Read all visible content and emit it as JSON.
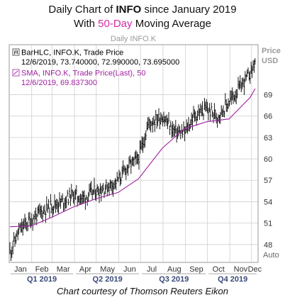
{
  "header": {
    "line1_prefix": "Daily Chart of ",
    "line1_ticker": "INFO",
    "line1_suffix": " since January 2019",
    "line2_prefix": "With ",
    "line2_accent": "50-Day",
    "line2_suffix": " Moving Average"
  },
  "caption": "Chart courtesy of Thomson Reuters Eikon",
  "colors": {
    "bars": "#000000",
    "sma": "#a020a0",
    "accent": "#d62aa6",
    "grid": "#cfcfcf",
    "quarter_text": "#3a4a7a"
  },
  "chart_data": {
    "type": "line",
    "panel_title": "Daily INFO.K",
    "axis_title_top": "Price",
    "axis_title_unit": "USD",
    "axis_title_bottom": "Auto",
    "ylim": [
      45.5,
      76
    ],
    "y_ticks": [
      "48",
      "51",
      "54",
      "57",
      "60",
      "63",
      "66",
      "69"
    ],
    "months": [
      "Jan",
      "Feb",
      "Mar",
      "Apr",
      "May",
      "Jun",
      "Jul",
      "Aug",
      "Sep",
      "Oct",
      "Nov",
      "Dec"
    ],
    "quarters": [
      "Q1 2019",
      "Q2 2019",
      "Q3 2019",
      "Q4 2019"
    ],
    "grid": true,
    "legend": {
      "bar_label": "BarHLC, INFO.K, Trade Price",
      "bar_values": "12/6/2019, 73.740000, 72.990000, 73.695000",
      "sma_label": "SMA, INFO.K, Trade Price(Last), 50",
      "sma_values": "12/6/2019, 69.837300"
    },
    "series": [
      {
        "name": "BarHLC, INFO.K, Trade Price",
        "style": "ohlc-bars",
        "x": [
          "2019-01-02",
          "2019-01-15",
          "2019-01-31",
          "2019-02-14",
          "2019-02-28",
          "2019-03-15",
          "2019-03-29",
          "2019-04-12",
          "2019-04-30",
          "2019-05-15",
          "2019-05-31",
          "2019-06-14",
          "2019-06-28",
          "2019-07-12",
          "2019-07-31",
          "2019-08-15",
          "2019-08-30",
          "2019-09-13",
          "2019-09-30",
          "2019-10-15",
          "2019-10-31",
          "2019-11-15",
          "2019-11-29",
          "2019-12-06"
        ],
        "close": [
          47.0,
          50.0,
          51.5,
          52.5,
          53.5,
          54.0,
          55.0,
          54.5,
          55.5,
          56.0,
          57.0,
          59.0,
          60.0,
          65.0,
          66.0,
          64.0,
          63.5,
          66.0,
          67.0,
          66.0,
          68.0,
          70.0,
          72.0,
          73.695
        ]
      },
      {
        "name": "SMA, INFO.K, Trade Price(Last), 50",
        "style": "line",
        "x": [
          "2019-01-02",
          "2019-01-31",
          "2019-02-28",
          "2019-03-29",
          "2019-04-30",
          "2019-05-31",
          "2019-06-28",
          "2019-07-31",
          "2019-08-30",
          "2019-09-30",
          "2019-10-31",
          "2019-11-29",
          "2019-12-06"
        ],
        "values": [
          50.5,
          50.6,
          51.8,
          53.2,
          54.4,
          55.3,
          57.2,
          61.5,
          64.2,
          65.2,
          65.6,
          68.6,
          69.84
        ]
      }
    ]
  }
}
